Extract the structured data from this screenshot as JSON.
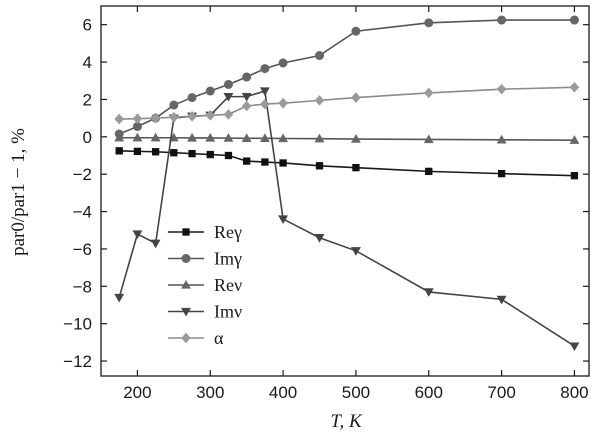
{
  "chart_data": {
    "type": "line",
    "title": "",
    "xlabel": "T, K",
    "ylabel": "par0/par1 − 1, %",
    "xlim": [
      150,
      820
    ],
    "ylim": [
      -12.8,
      7
    ],
    "xticks": [
      200,
      300,
      400,
      500,
      600,
      700,
      800
    ],
    "yticks": [
      6,
      4,
      2,
      0,
      -2,
      -4,
      -6,
      -8,
      -10,
      -12
    ],
    "x_tick_labels": [
      "200",
      "300",
      "400",
      "500",
      "600",
      "700",
      "800"
    ],
    "y_tick_labels": [
      "6",
      "4",
      "2",
      "0",
      "−2",
      "−4",
      "−6",
      "−8",
      "−10",
      "−12"
    ],
    "grid": false,
    "legend_position": "lower-left",
    "series": [
      {
        "name": "Reγ",
        "marker": "square",
        "color": "#111111",
        "line_color": "#1a1a1a",
        "x": [
          175,
          200,
          225,
          250,
          275,
          300,
          325,
          350,
          375,
          400,
          450,
          500,
          600,
          700,
          800
        ],
        "y": [
          -0.75,
          -0.78,
          -0.8,
          -0.85,
          -0.9,
          -0.95,
          -1.0,
          -1.3,
          -1.35,
          -1.4,
          -1.55,
          -1.65,
          -1.85,
          -1.97,
          -2.08
        ]
      },
      {
        "name": "Imγ",
        "marker": "circle",
        "color": "#666666",
        "line_color": "#555555",
        "x": [
          175,
          200,
          225,
          250,
          275,
          300,
          325,
          350,
          375,
          400,
          450,
          500,
          600,
          700,
          800
        ],
        "y": [
          0.15,
          0.55,
          1.0,
          1.7,
          2.1,
          2.45,
          2.8,
          3.2,
          3.65,
          3.95,
          4.35,
          5.65,
          6.1,
          6.25,
          6.25
        ]
      },
      {
        "name": "Reν",
        "marker": "triangle-up",
        "color": "#666666",
        "line_color": "#555555",
        "x": [
          175,
          200,
          225,
          250,
          275,
          300,
          325,
          350,
          375,
          400,
          450,
          500,
          600,
          700,
          800
        ],
        "y": [
          -0.05,
          -0.05,
          -0.05,
          -0.05,
          -0.06,
          -0.06,
          -0.07,
          -0.08,
          -0.08,
          -0.09,
          -0.1,
          -0.12,
          -0.14,
          -0.16,
          -0.18
        ]
      },
      {
        "name": "Imν",
        "marker": "triangle-down",
        "color": "#444444",
        "line_color": "#444444",
        "x": [
          175,
          200,
          225,
          250,
          275,
          300,
          325,
          350,
          375,
          400,
          450,
          500,
          600,
          700,
          800
        ],
        "y": [
          -8.6,
          -5.2,
          -5.7,
          1.0,
          1.1,
          1.15,
          2.15,
          2.15,
          2.45,
          -4.4,
          -5.4,
          -6.1,
          -8.3,
          -8.7,
          -11.2
        ]
      },
      {
        "name": "α",
        "marker": "diamond",
        "color": "#9a9a9a",
        "line_color": "#8a8a8a",
        "x": [
          175,
          200,
          225,
          250,
          275,
          300,
          325,
          350,
          375,
          400,
          450,
          500,
          600,
          700,
          800
        ],
        "y": [
          0.95,
          0.97,
          1.0,
          1.05,
          1.1,
          1.15,
          1.2,
          1.65,
          1.75,
          1.8,
          1.95,
          2.1,
          2.35,
          2.55,
          2.65
        ]
      }
    ]
  }
}
